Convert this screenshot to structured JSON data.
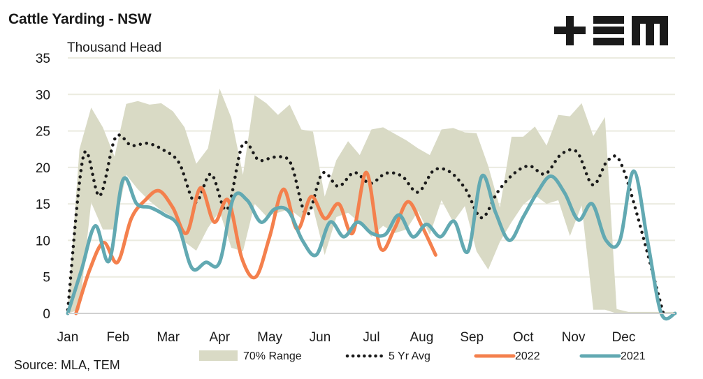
{
  "header": {
    "title": "Cattle Yarding - NSW",
    "logo_text": "TEM"
  },
  "footer": {
    "source": "Source: MLA, TEM"
  },
  "colors": {
    "range": "#d9dac5",
    "avg": "#1a1a1a",
    "y2022": "#f4804d",
    "y2021": "#62a9b2",
    "grid": "#ebebe0"
  },
  "chart_data": {
    "type": "line",
    "title": "Cattle Yarding - NSW",
    "ylabel": "Thousand Head",
    "xlabel": "",
    "ylim": [
      0,
      35
    ],
    "yticks": [
      0,
      5,
      10,
      15,
      20,
      25,
      30,
      35
    ],
    "grid": true,
    "x_unit": "week of year",
    "x": [
      0,
      1,
      2,
      3,
      4,
      5,
      6,
      7,
      8,
      9,
      10,
      11,
      12,
      13,
      14,
      15,
      16,
      17,
      18,
      19,
      20,
      21,
      22,
      23,
      24,
      25,
      26,
      27,
      28,
      29,
      30,
      31,
      32,
      33,
      34,
      35,
      36,
      37,
      38,
      39,
      40,
      41,
      42,
      43,
      44,
      45,
      46,
      47,
      48,
      49,
      50,
      51,
      52
    ],
    "month_labels": [
      "Jan",
      "Feb",
      "Mar",
      "Apr",
      "May",
      "Jun",
      "Jul",
      "Aug",
      "Sep",
      "Oct",
      "Nov",
      "Dec"
    ],
    "month_label_weeks": [
      0,
      4.3,
      8.6,
      13,
      17.3,
      21.6,
      26,
      30.3,
      34.6,
      39,
      43.3,
      47.6
    ],
    "legend": {
      "placement": "bottom",
      "items": [
        {
          "key": "range",
          "label": "70% Range"
        },
        {
          "key": "avg",
          "label": "5 Yr Avg"
        },
        {
          "key": "y2022",
          "label": "2022"
        },
        {
          "key": "y2021",
          "label": "2021"
        }
      ]
    },
    "series": [
      {
        "name": "70% Range",
        "key": "range",
        "type": "band",
        "upper": [
          0.5,
          22.5,
          28.2,
          25.5,
          21.5,
          28.7,
          29.1,
          28.6,
          28.8,
          27.7,
          25.5,
          20.5,
          22.6,
          30.8,
          26.8,
          19.0,
          29.9,
          28.8,
          27.2,
          28.6,
          25.2,
          24.9,
          16.0,
          21.0,
          23.6,
          21.7,
          25.2,
          25.5,
          24.6,
          23.7,
          22.6,
          21.7,
          25.2,
          25.4,
          24.8,
          24.7,
          20.2,
          14.5,
          24.2,
          24.2,
          25.6,
          23.0,
          27.2,
          27.0,
          28.8,
          24.3,
          26.9,
          0.6,
          0.2,
          0.2,
          0.2,
          0.2,
          0.2
        ],
        "lower": [
          0.0,
          0.5,
          15.2,
          11.5,
          11.5,
          19.0,
          17.0,
          15.4,
          14.1,
          13.2,
          9.8,
          8.6,
          11.7,
          14.0,
          9.0,
          8.5,
          15.0,
          13.3,
          13.8,
          14.3,
          13.0,
          14.5,
          8.0,
          13.2,
          13.8,
          12.4,
          10.5,
          12.0,
          11.0,
          11.5,
          14.0,
          10.8,
          15.5,
          12.5,
          14.7,
          8.5,
          6.0,
          9.8,
          12.5,
          14.9,
          16.2,
          15.0,
          15.5,
          10.6,
          14.8,
          0.5,
          0.5,
          0.0,
          0.0,
          0.0,
          0.0,
          0.0,
          0.0
        ]
      },
      {
        "name": "5 Yr Avg",
        "key": "avg",
        "type": "dotted",
        "values": [
          0.5,
          21.7,
          16.1,
          24.1,
          23.0,
          23.3,
          22.4,
          20.6,
          15.2,
          19.1,
          14.2,
          23.2,
          21.0,
          21.4,
          20.6,
          13.5,
          19.2,
          17.4,
          19.3,
          17.8,
          19.2,
          18.8,
          16.6,
          19.6,
          19.4,
          17.0,
          13.1,
          16.6,
          19.1,
          20.2,
          19.1,
          21.8,
          22.1,
          17.6,
          21.1,
          19.2,
          0.0,
          0.0,
          0.0,
          0.0,
          0.0,
          0.0,
          0.0,
          0.0,
          0.0,
          0.0,
          0.0,
          0.0,
          0.0,
          0.0,
          0.0,
          0.0,
          0.0
        ]
      },
      {
        "name": "2022",
        "key": "y2022",
        "type": "line",
        "values": [
          0.0,
          6.0,
          9.7,
          7.0,
          13.0,
          15.5,
          16.8,
          14.5,
          11.0,
          17.2,
          12.5,
          15.5,
          7.5,
          5.0,
          10.5,
          17.0,
          11.5,
          16.0,
          13.0,
          15.0,
          11.0,
          19.3,
          9.0,
          11.5,
          15.3,
          12.0,
          8.0
        ]
      },
      {
        "name": "2021",
        "key": "y2021",
        "type": "line",
        "values": [
          0.0,
          6.0,
          12.0,
          7.2,
          18.3,
          15.0,
          14.5,
          13.5,
          12.0,
          6.2,
          7.0,
          7.0,
          15.8,
          15.5,
          12.5,
          14.3,
          14.0,
          10.0,
          8.0,
          12.5,
          10.5,
          12.5,
          11.0,
          10.8,
          13.5,
          10.5,
          12.2,
          10.5,
          12.6,
          8.5,
          18.8,
          13.8,
          10.0,
          13.2,
          16.5,
          18.8,
          16.5,
          12.8,
          15.0,
          10.0,
          10.0,
          19.5,
          10.0,
          0.0,
          0.0
        ]
      }
    ]
  }
}
